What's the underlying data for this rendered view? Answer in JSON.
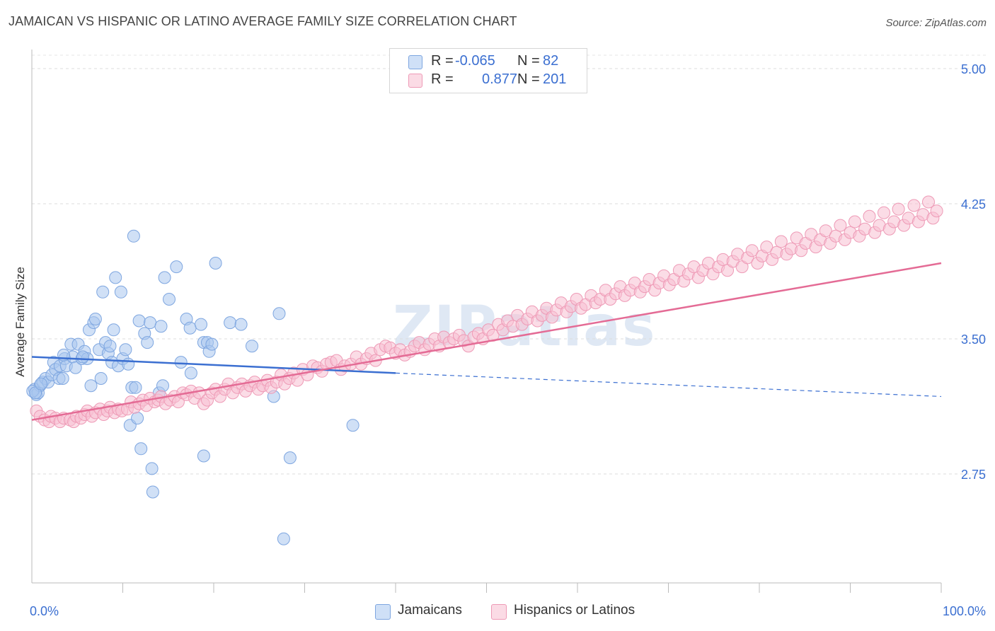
{
  "title": "JAMAICAN VS HISPANIC OR LATINO AVERAGE FAMILY SIZE CORRELATION CHART",
  "source": "Source: ZipAtlas.com",
  "watermark": "ZIPatlas",
  "legend_top": [
    {
      "r_label": "R =",
      "r_value": "-0.065",
      "n_label": "N =",
      "n_value": "82",
      "color": "#a9c7f0"
    },
    {
      "r_label": "R =",
      "r_value": "0.877",
      "n_label": "N =",
      "n_value": "201",
      "color": "#f6b9cc"
    }
  ],
  "legend_bottom": [
    {
      "label": "Jamaicans",
      "color": "#a9c7f0"
    },
    {
      "label": "Hispanics or Latinos",
      "color": "#f6b9cc"
    }
  ],
  "colors": {
    "blue": "#3b6fd1",
    "blue_fill": "#aac6ee",
    "pink": "#e46b95",
    "pink_fill": "#f7bfd1",
    "grid": "#dddddd",
    "axis_label": "#3b6fd1"
  },
  "chart_data": {
    "type": "scatter",
    "title": "JAMAICAN VS HISPANIC OR LATINO AVERAGE FAMILY SIZE CORRELATION CHART",
    "xlabel": "",
    "ylabel": "Average Family Size",
    "xlim": [
      0,
      100
    ],
    "ylim": [
      2.0,
      5.1
    ],
    "x_tick_labels": [
      "0.0%",
      "100.0%"
    ],
    "y_ticks": [
      2.75,
      3.5,
      4.25,
      5.0
    ],
    "y_tick_labels": [
      "2.75",
      "3.50",
      "4.25",
      "5.00"
    ],
    "grid": "horizontal dashed",
    "series": [
      {
        "name": "Jamaicans",
        "r": -0.065,
        "n": 82,
        "trend_solid": {
          "x": [
            0,
            40
          ],
          "y": [
            3.4,
            3.31
          ]
        },
        "trend_dashed": {
          "x": [
            40,
            100
          ],
          "y": [
            3.31,
            3.18
          ]
        },
        "points": [
          [
            0.3,
            3.22
          ],
          [
            0.5,
            3.19
          ],
          [
            0.7,
            3.2
          ],
          [
            0.9,
            3.24
          ],
          [
            1.2,
            3.26
          ],
          [
            1.5,
            3.28
          ],
          [
            1.8,
            3.26
          ],
          [
            2.2,
            3.3
          ],
          [
            2.4,
            3.37
          ],
          [
            2.6,
            3.33
          ],
          [
            3.0,
            3.28
          ],
          [
            3.1,
            3.35
          ],
          [
            3.4,
            3.28
          ],
          [
            3.6,
            3.39
          ],
          [
            3.8,
            3.35
          ],
          [
            4.3,
            3.47
          ],
          [
            4.5,
            3.4
          ],
          [
            4.8,
            3.34
          ],
          [
            5.1,
            3.47
          ],
          [
            5.5,
            3.39
          ],
          [
            5.8,
            3.43
          ],
          [
            6.1,
            3.39
          ],
          [
            6.3,
            3.55
          ],
          [
            6.5,
            3.24
          ],
          [
            6.8,
            3.59
          ],
          [
            7.0,
            3.61
          ],
          [
            7.4,
            3.44
          ],
          [
            7.6,
            3.28
          ],
          [
            7.8,
            3.76
          ],
          [
            8.1,
            3.48
          ],
          [
            8.4,
            3.42
          ],
          [
            8.6,
            3.46
          ],
          [
            8.8,
            3.37
          ],
          [
            9.0,
            3.55
          ],
          [
            9.2,
            3.84
          ],
          [
            9.5,
            3.35
          ],
          [
            9.8,
            3.76
          ],
          [
            10.0,
            3.39
          ],
          [
            10.3,
            3.44
          ],
          [
            10.6,
            3.36
          ],
          [
            10.8,
            3.02
          ],
          [
            11.0,
            3.23
          ],
          [
            11.2,
            4.07
          ],
          [
            11.4,
            3.23
          ],
          [
            11.6,
            3.06
          ],
          [
            11.8,
            3.6
          ],
          [
            12.0,
            2.89
          ],
          [
            12.4,
            3.53
          ],
          [
            12.7,
            3.48
          ],
          [
            13.0,
            3.59
          ],
          [
            13.2,
            2.78
          ],
          [
            13.3,
            2.65
          ],
          [
            14.0,
            3.2
          ],
          [
            14.2,
            3.57
          ],
          [
            14.4,
            3.24
          ],
          [
            14.6,
            3.84
          ],
          [
            15.1,
            3.72
          ],
          [
            15.9,
            3.9
          ],
          [
            16.4,
            3.37
          ],
          [
            17.0,
            3.61
          ],
          [
            17.4,
            3.56
          ],
          [
            17.5,
            3.31
          ],
          [
            18.6,
            3.58
          ],
          [
            18.9,
            3.48
          ],
          [
            19.3,
            3.48
          ],
          [
            19.5,
            3.43
          ],
          [
            19.8,
            3.47
          ],
          [
            20.2,
            3.92
          ],
          [
            18.9,
            2.85
          ],
          [
            21.8,
            3.59
          ],
          [
            23.0,
            3.58
          ],
          [
            24.2,
            3.46
          ],
          [
            26.6,
            3.18
          ],
          [
            27.2,
            3.64
          ],
          [
            27.7,
            2.39
          ],
          [
            28.4,
            2.84
          ],
          [
            35.3,
            3.02
          ],
          [
            0.1,
            3.21
          ],
          [
            0.4,
            3.2
          ],
          [
            1.0,
            3.25
          ],
          [
            3.5,
            3.41
          ],
          [
            5.6,
            3.4
          ]
        ]
      },
      {
        "name": "Hispanics or Latinos",
        "r": 0.877,
        "n": 201,
        "trend_solid": {
          "x": [
            0,
            100
          ],
          "y": [
            3.05,
            3.92
          ]
        },
        "points": [
          [
            0.5,
            3.1
          ],
          [
            0.9,
            3.07
          ],
          [
            1.4,
            3.05
          ],
          [
            1.9,
            3.04
          ],
          [
            2.1,
            3.07
          ],
          [
            2.6,
            3.06
          ],
          [
            3.1,
            3.04
          ],
          [
            3.5,
            3.06
          ],
          [
            4.2,
            3.05
          ],
          [
            4.6,
            3.04
          ],
          [
            4.9,
            3.07
          ],
          [
            5.4,
            3.06
          ],
          [
            5.8,
            3.08
          ],
          [
            6.1,
            3.1
          ],
          [
            6.6,
            3.07
          ],
          [
            7.0,
            3.09
          ],
          [
            7.5,
            3.11
          ],
          [
            7.9,
            3.08
          ],
          [
            8.3,
            3.1
          ],
          [
            8.6,
            3.12
          ],
          [
            9.1,
            3.09
          ],
          [
            9.5,
            3.11
          ],
          [
            9.9,
            3.1
          ],
          [
            10.5,
            3.11
          ],
          [
            10.9,
            3.15
          ],
          [
            11.3,
            3.12
          ],
          [
            11.8,
            3.14
          ],
          [
            12.2,
            3.16
          ],
          [
            12.6,
            3.13
          ],
          [
            13.0,
            3.17
          ],
          [
            13.5,
            3.15
          ],
          [
            13.9,
            3.16
          ],
          [
            14.2,
            3.18
          ],
          [
            14.7,
            3.14
          ],
          [
            15.2,
            3.16
          ],
          [
            15.7,
            3.18
          ],
          [
            16.1,
            3.15
          ],
          [
            16.6,
            3.2
          ],
          [
            17.0,
            3.19
          ],
          [
            17.5,
            3.21
          ],
          [
            17.9,
            3.17
          ],
          [
            18.4,
            3.2
          ],
          [
            18.9,
            3.14
          ],
          [
            19.3,
            3.16
          ],
          [
            19.8,
            3.2
          ],
          [
            20.2,
            3.22
          ],
          [
            20.7,
            3.18
          ],
          [
            21.2,
            3.22
          ],
          [
            21.6,
            3.25
          ],
          [
            22.1,
            3.2
          ],
          [
            22.6,
            3.23
          ],
          [
            23.1,
            3.25
          ],
          [
            23.5,
            3.21
          ],
          [
            24.0,
            3.24
          ],
          [
            24.5,
            3.26
          ],
          [
            24.9,
            3.22
          ],
          [
            25.4,
            3.24
          ],
          [
            25.9,
            3.27
          ],
          [
            26.3,
            3.23
          ],
          [
            26.9,
            3.26
          ],
          [
            27.4,
            3.3
          ],
          [
            27.8,
            3.25
          ],
          [
            28.3,
            3.28
          ],
          [
            28.8,
            3.31
          ],
          [
            29.2,
            3.27
          ],
          [
            29.8,
            3.33
          ],
          [
            30.3,
            3.3
          ],
          [
            30.9,
            3.35
          ],
          [
            31.4,
            3.34
          ],
          [
            31.9,
            3.32
          ],
          [
            32.4,
            3.36
          ],
          [
            32.9,
            3.37
          ],
          [
            33.5,
            3.38
          ],
          [
            34.0,
            3.33
          ],
          [
            34.4,
            3.35
          ],
          [
            35.1,
            3.36
          ],
          [
            35.7,
            3.4
          ],
          [
            36.2,
            3.36
          ],
          [
            36.8,
            3.39
          ],
          [
            37.3,
            3.42
          ],
          [
            37.8,
            3.38
          ],
          [
            38.3,
            3.44
          ],
          [
            38.9,
            3.46
          ],
          [
            39.4,
            3.45
          ],
          [
            40.0,
            3.42
          ],
          [
            40.5,
            3.44
          ],
          [
            41.0,
            3.41
          ],
          [
            41.6,
            3.43
          ],
          [
            42.1,
            3.46
          ],
          [
            42.6,
            3.48
          ],
          [
            43.2,
            3.44
          ],
          [
            43.7,
            3.47
          ],
          [
            44.3,
            3.5
          ],
          [
            44.8,
            3.46
          ],
          [
            45.3,
            3.51
          ],
          [
            45.9,
            3.48
          ],
          [
            46.4,
            3.5
          ],
          [
            47.0,
            3.52
          ],
          [
            47.5,
            3.49
          ],
          [
            48.0,
            3.46
          ],
          [
            48.6,
            3.51
          ],
          [
            49.1,
            3.53
          ],
          [
            49.6,
            3.5
          ],
          [
            50.2,
            3.55
          ],
          [
            50.7,
            3.52
          ],
          [
            51.3,
            3.58
          ],
          [
            51.8,
            3.55
          ],
          [
            52.3,
            3.6
          ],
          [
            52.9,
            3.57
          ],
          [
            53.4,
            3.63
          ],
          [
            53.9,
            3.58
          ],
          [
            54.5,
            3.61
          ],
          [
            55.0,
            3.65
          ],
          [
            55.6,
            3.6
          ],
          [
            56.1,
            3.63
          ],
          [
            56.6,
            3.67
          ],
          [
            57.2,
            3.62
          ],
          [
            57.7,
            3.66
          ],
          [
            58.2,
            3.7
          ],
          [
            58.8,
            3.65
          ],
          [
            59.3,
            3.68
          ],
          [
            59.9,
            3.72
          ],
          [
            60.4,
            3.67
          ],
          [
            60.9,
            3.69
          ],
          [
            61.5,
            3.74
          ],
          [
            62.0,
            3.7
          ],
          [
            62.5,
            3.72
          ],
          [
            63.1,
            3.77
          ],
          [
            63.6,
            3.72
          ],
          [
            64.2,
            3.75
          ],
          [
            64.7,
            3.79
          ],
          [
            65.2,
            3.74
          ],
          [
            65.8,
            3.77
          ],
          [
            66.3,
            3.81
          ],
          [
            66.9,
            3.76
          ],
          [
            67.4,
            3.79
          ],
          [
            67.9,
            3.83
          ],
          [
            68.5,
            3.77
          ],
          [
            69.0,
            3.81
          ],
          [
            69.5,
            3.85
          ],
          [
            70.1,
            3.8
          ],
          [
            70.6,
            3.83
          ],
          [
            71.2,
            3.88
          ],
          [
            71.7,
            3.82
          ],
          [
            72.2,
            3.86
          ],
          [
            72.8,
            3.9
          ],
          [
            73.3,
            3.84
          ],
          [
            73.8,
            3.88
          ],
          [
            74.4,
            3.92
          ],
          [
            74.9,
            3.86
          ],
          [
            75.5,
            3.9
          ],
          [
            76.0,
            3.94
          ],
          [
            76.5,
            3.88
          ],
          [
            77.1,
            3.93
          ],
          [
            77.6,
            3.97
          ],
          [
            78.1,
            3.9
          ],
          [
            78.7,
            3.95
          ],
          [
            79.2,
            3.99
          ],
          [
            79.8,
            3.92
          ],
          [
            80.3,
            3.96
          ],
          [
            80.8,
            4.01
          ],
          [
            81.4,
            3.94
          ],
          [
            81.9,
            3.98
          ],
          [
            82.4,
            4.04
          ],
          [
            83.0,
            3.97
          ],
          [
            83.5,
            4.0
          ],
          [
            84.1,
            4.06
          ],
          [
            84.6,
            3.99
          ],
          [
            85.1,
            4.03
          ],
          [
            85.7,
            4.08
          ],
          [
            86.2,
            4.01
          ],
          [
            86.7,
            4.05
          ],
          [
            87.3,
            4.1
          ],
          [
            87.8,
            4.03
          ],
          [
            88.4,
            4.07
          ],
          [
            88.9,
            4.13
          ],
          [
            89.4,
            4.05
          ],
          [
            90.0,
            4.09
          ],
          [
            90.5,
            4.15
          ],
          [
            91.0,
            4.07
          ],
          [
            91.6,
            4.11
          ],
          [
            92.1,
            4.18
          ],
          [
            92.7,
            4.09
          ],
          [
            93.2,
            4.13
          ],
          [
            93.7,
            4.2
          ],
          [
            94.3,
            4.11
          ],
          [
            94.8,
            4.15
          ],
          [
            95.3,
            4.22
          ],
          [
            95.9,
            4.13
          ],
          [
            96.4,
            4.17
          ],
          [
            97.0,
            4.24
          ],
          [
            97.5,
            4.15
          ],
          [
            98.0,
            4.19
          ],
          [
            98.6,
            4.26
          ],
          [
            99.1,
            4.17
          ],
          [
            99.5,
            4.21
          ]
        ]
      }
    ]
  }
}
